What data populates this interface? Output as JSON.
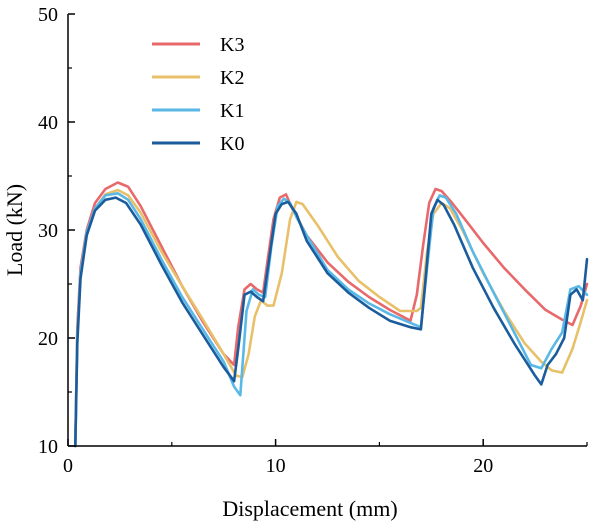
{
  "chart_data": {
    "type": "line",
    "title": "",
    "xlabel": "Displacement (mm)",
    "ylabel": "Load (kN)",
    "xlim": [
      0,
      25
    ],
    "ylim": [
      10,
      50
    ],
    "xticks": [
      0,
      10,
      20
    ],
    "yticks": [
      10,
      20,
      30,
      40,
      50
    ],
    "grid": false,
    "legend_position": "top-left",
    "series": [
      {
        "name": "K3",
        "color": "#e8696b",
        "x": [
          0.35,
          0.45,
          0.6,
          0.9,
          1.3,
          1.8,
          2.4,
          2.9,
          3.5,
          4.5,
          5.5,
          6.5,
          7.5,
          8.0,
          8.2,
          8.5,
          8.8,
          9.1,
          9.4,
          9.6,
          9.9,
          10.2,
          10.5,
          10.8,
          11.5,
          12.5,
          13.5,
          14.5,
          15.5,
          16.5,
          16.8,
          17.1,
          17.4,
          17.7,
          18.0,
          18.5,
          19.2,
          20.0,
          21.0,
          22.0,
          23.0,
          23.8,
          24.3,
          24.7,
          25.0
        ],
        "y": [
          10.0,
          21.0,
          26.5,
          30.0,
          32.5,
          33.8,
          34.4,
          34.0,
          32.2,
          28.5,
          24.8,
          21.5,
          18.5,
          17.5,
          21.0,
          24.5,
          25.0,
          24.5,
          24.2,
          27.0,
          31.0,
          33.0,
          33.3,
          32.0,
          29.5,
          27.0,
          25.2,
          23.8,
          22.6,
          21.6,
          24.0,
          28.5,
          32.5,
          33.8,
          33.6,
          32.5,
          30.8,
          28.8,
          26.5,
          24.5,
          22.6,
          21.7,
          21.2,
          23.0,
          25.0
        ]
      },
      {
        "name": "K2",
        "color": "#e8c06a",
        "x": [
          0.35,
          0.45,
          0.6,
          0.9,
          1.3,
          1.8,
          2.4,
          2.9,
          3.5,
          4.5,
          5.5,
          6.5,
          7.5,
          8.1,
          8.4,
          8.7,
          9.0,
          9.3,
          9.6,
          9.9,
          10.3,
          10.7,
          11.0,
          11.3,
          12.0,
          13.0,
          14.0,
          15.0,
          16.0,
          16.8,
          17.0,
          17.3,
          17.6,
          18.0,
          18.4,
          19.0,
          20.0,
          21.0,
          22.0,
          22.8,
          23.3,
          23.8,
          24.3,
          24.7,
          25.0
        ],
        "y": [
          10.0,
          20.0,
          26.0,
          29.5,
          32.0,
          33.3,
          33.7,
          33.2,
          31.6,
          28.0,
          24.8,
          21.7,
          18.5,
          16.5,
          16.4,
          18.5,
          22.0,
          23.5,
          23.0,
          23.0,
          26.0,
          31.0,
          32.6,
          32.4,
          30.5,
          27.5,
          25.3,
          23.8,
          22.5,
          22.5,
          22.8,
          28.0,
          31.5,
          32.5,
          32.0,
          30.0,
          26.0,
          22.5,
          19.5,
          17.8,
          17.0,
          16.8,
          19.0,
          21.5,
          23.5
        ]
      },
      {
        "name": "K1",
        "color": "#5ab8e6",
        "x": [
          0.35,
          0.45,
          0.6,
          0.9,
          1.3,
          1.8,
          2.4,
          2.9,
          3.5,
          4.5,
          5.5,
          6.5,
          7.5,
          8.0,
          8.3,
          8.6,
          8.9,
          9.2,
          9.5,
          9.8,
          10.1,
          10.4,
          10.7,
          11.0,
          11.5,
          12.5,
          13.5,
          14.5,
          15.5,
          16.5,
          17.0,
          17.3,
          17.6,
          17.9,
          18.2,
          18.7,
          19.5,
          20.5,
          21.5,
          22.3,
          22.8,
          23.3,
          23.8,
          24.2,
          24.6,
          25.0
        ],
        "y": [
          10.0,
          20.0,
          26.0,
          29.8,
          32.0,
          33.2,
          33.4,
          32.8,
          31.0,
          27.3,
          23.8,
          20.8,
          17.8,
          15.5,
          14.7,
          22.5,
          24.5,
          24.0,
          23.8,
          28.5,
          32.2,
          32.9,
          32.5,
          31.2,
          29.5,
          26.3,
          24.5,
          23.2,
          22.2,
          21.4,
          21.0,
          26.5,
          32.0,
          33.2,
          33.0,
          31.5,
          28.0,
          24.2,
          20.5,
          17.5,
          17.2,
          19.0,
          20.5,
          24.5,
          24.8,
          24.0
        ]
      },
      {
        "name": "K0",
        "color": "#1a5c9c",
        "x": [
          0.35,
          0.45,
          0.6,
          0.9,
          1.3,
          1.8,
          2.3,
          2.8,
          3.5,
          4.5,
          5.5,
          6.5,
          7.5,
          8.0,
          8.2,
          8.5,
          8.8,
          9.1,
          9.4,
          9.7,
          10.0,
          10.3,
          10.6,
          11.0,
          11.5,
          12.5,
          13.5,
          14.5,
          15.5,
          16.5,
          17.0,
          17.2,
          17.5,
          17.8,
          18.1,
          18.6,
          19.5,
          20.5,
          21.5,
          22.5,
          22.8,
          23.1,
          23.5,
          23.9,
          24.2,
          24.5,
          24.8,
          25.0
        ],
        "y": [
          10.0,
          19.5,
          25.5,
          29.5,
          31.8,
          32.8,
          33.0,
          32.5,
          30.5,
          26.8,
          23.3,
          20.3,
          17.3,
          16.0,
          19.0,
          24.0,
          24.3,
          23.8,
          23.4,
          27.5,
          31.5,
          32.4,
          32.6,
          31.5,
          29.0,
          26.0,
          24.2,
          22.8,
          21.6,
          21.0,
          20.8,
          25.0,
          31.5,
          32.8,
          32.3,
          30.5,
          26.5,
          22.8,
          19.5,
          16.5,
          15.7,
          17.5,
          18.5,
          20.0,
          24.0,
          24.5,
          23.5,
          27.3
        ]
      }
    ]
  }
}
